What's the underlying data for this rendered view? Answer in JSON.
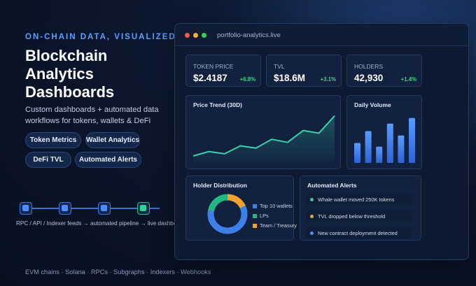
{
  "hero": {
    "eyebrow": "ON-CHAIN DATA, VISUALIZED",
    "title_lines": [
      "Blockchain",
      "Analytics",
      "Dashboards"
    ],
    "subtitle": "Custom dashboards + automated data workflows for tokens, wallets & DeFi",
    "pills": [
      "Token Metrics",
      "Wallet Analytics",
      "DeFi TVL",
      "Automated Alerts"
    ]
  },
  "pipeline": {
    "caption": "RPC / API / Indexer feeds → automated pipeline → live dashboard",
    "nodes": 4
  },
  "footer": "EVM chains · Solana · RPCs · Subgraphs · Indexers · Webhooks",
  "window": {
    "url": "portfolio-analytics.live",
    "kpis": [
      {
        "label": "TOKEN PRICE",
        "value": "$2.4187",
        "delta": "+6.8%"
      },
      {
        "label": "TVL",
        "value": "$18.6M",
        "delta": "+3.1%"
      },
      {
        "label": "HOLDERS",
        "value": "42,930",
        "delta": "+1.4%"
      }
    ],
    "price_trend": {
      "title": "Price Trend (30D)",
      "values": [
        1.32,
        1.52,
        1.42,
        1.78,
        1.68,
        2.08,
        1.94,
        2.48,
        2.36,
        3.15
      ]
    },
    "daily_volume": {
      "title": "Daily Volume",
      "values": [
        3.2,
        5.1,
        2.6,
        6.3,
        4.4,
        7.2
      ]
    },
    "holder_distribution": {
      "title": "Holder Distribution",
      "segments": [
        {
          "label": "Top 10 wallets",
          "share": 60,
          "color": "#3f7fe8"
        },
        {
          "label": "LPs",
          "share": 22,
          "color": "#22b785"
        },
        {
          "label": "Team / Treasury",
          "share": 18,
          "color": "#f1a22f"
        }
      ]
    },
    "alerts": {
      "title": "Automated Alerts",
      "items": [
        {
          "text": "Whale wallet moved 250K tokens",
          "color": "#2fcf86"
        },
        {
          "text": "TVL dropped below threshold",
          "color": "#f1a22f"
        },
        {
          "text": "New contract deployment detected",
          "color": "#4d8dff"
        }
      ]
    }
  }
}
